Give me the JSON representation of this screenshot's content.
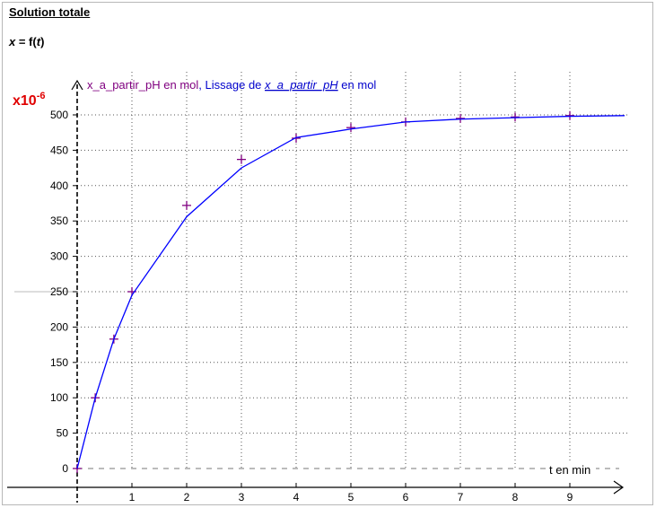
{
  "title": "Solution totale",
  "subtitle": {
    "var": "x",
    "eq": " = f(",
    "arg": "t",
    "close": ")"
  },
  "chart_data": {
    "type": "line",
    "y_multiplier": "x10",
    "y_exponent": "-6",
    "xlabel": "t en min",
    "ylabel": "",
    "xlim": [
      0,
      10
    ],
    "ylim": [
      0,
      500
    ],
    "x_ticks": [
      1,
      2,
      3,
      4,
      5,
      6,
      7,
      8,
      9
    ],
    "y_ticks": [
      0,
      50,
      100,
      150,
      200,
      250,
      300,
      350,
      400,
      450,
      500
    ],
    "grid": true,
    "legend": {
      "position": "top-left",
      "entries": [
        {
          "text": "x_a_partir_pH en mol",
          "color": "#800080"
        },
        {
          "text": ", ",
          "color": "#0000cc"
        },
        {
          "text": "Lissage de ",
          "color": "#0000cc"
        },
        {
          "text": "x_a_partir_pH",
          "color": "#0000cc",
          "italic": true,
          "underline": true
        },
        {
          "text": " en mol",
          "color": "#0000cc"
        }
      ]
    },
    "series": [
      {
        "name": "x_a_partir_pH en mol",
        "style": "markers",
        "marker": "plus",
        "color": "#800080",
        "x": [
          0,
          0.33,
          0.67,
          1,
          2,
          3,
          4,
          5,
          6,
          7,
          8,
          9
        ],
        "y": [
          0,
          100,
          183,
          250,
          372,
          437,
          467,
          482,
          490,
          495,
          497,
          499
        ]
      },
      {
        "name": "Lissage de x_a_partir_pH en mol",
        "style": "line",
        "color": "#0000ff",
        "x": [
          0,
          0.33,
          0.67,
          1,
          2,
          3,
          4,
          5,
          6,
          7,
          8,
          9,
          10
        ],
        "y": [
          0,
          100,
          183,
          245,
          356,
          425,
          468,
          480,
          490,
          494,
          496,
          498,
          499
        ]
      }
    ]
  }
}
